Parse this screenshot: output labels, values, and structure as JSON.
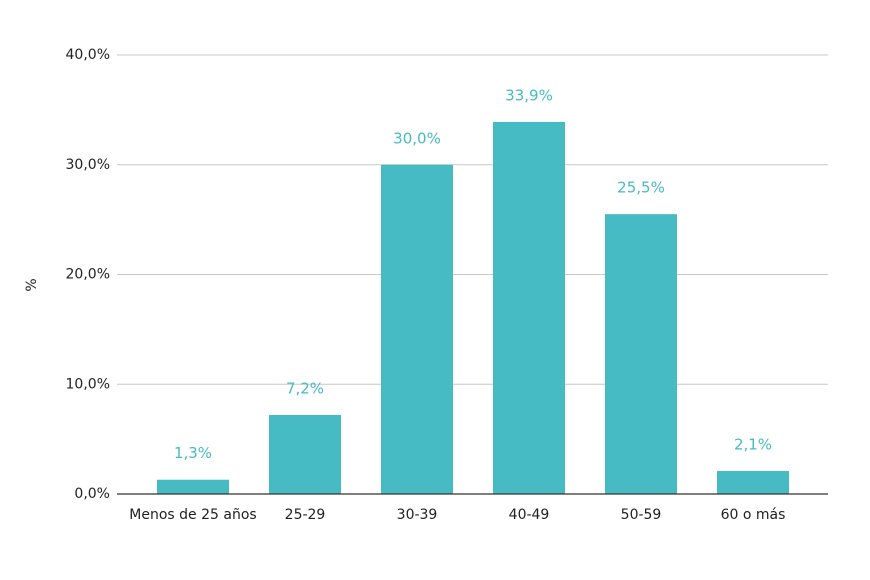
{
  "chart_data": {
    "type": "bar",
    "y_label": "%",
    "categories": [
      "Menos de 25 años",
      "25-29",
      "30-39",
      "40-49",
      "50-59",
      "60 o más"
    ],
    "values": [
      1.3,
      7.2,
      30.0,
      33.9,
      25.5,
      2.1
    ],
    "value_labels": [
      "1,3%",
      "7,2%",
      "30,0%",
      "33,9%",
      "25,5%",
      "2,1%"
    ],
    "color": "#47bbc4",
    "ylim": [
      0,
      40
    ],
    "yticks": [
      {
        "value": 0,
        "label": "0,0%"
      },
      {
        "value": 10,
        "label": "10,0%"
      },
      {
        "value": 20,
        "label": "20,0%"
      },
      {
        "value": 30,
        "label": "30,0%"
      },
      {
        "value": 40,
        "label": "40,0%"
      }
    ],
    "grid": true
  }
}
